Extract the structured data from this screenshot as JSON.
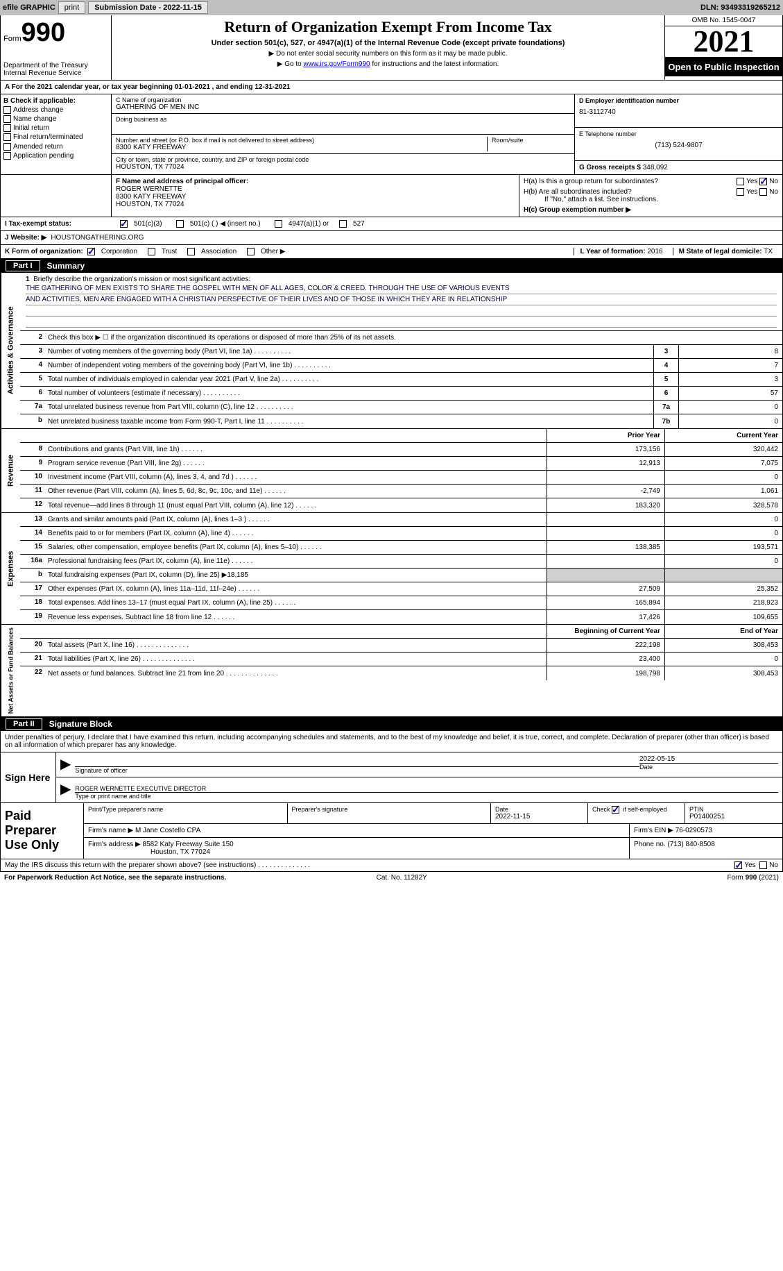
{
  "topbar": {
    "efile_label": "efile GRAPHIC",
    "print_btn": "print",
    "sub_date_label": "Submission Date - 2022-11-15",
    "dln": "DLN: 93493319265212"
  },
  "header": {
    "form_small": "Form",
    "form_big": "990",
    "dept": "Department of the Treasury Internal Revenue Service",
    "title": "Return of Organization Exempt From Income Tax",
    "sub1": "Under section 501(c), 527, or 4947(a)(1) of the Internal Revenue Code (except private foundations)",
    "sub2": "▶ Do not enter social security numbers on this form as it may be made public.",
    "sub3_pre": "▶ Go to ",
    "sub3_link": "www.irs.gov/Form990",
    "sub3_post": " for instructions and the latest information.",
    "omb": "OMB No. 1545-0047",
    "year": "2021",
    "open": "Open to Public Inspection"
  },
  "lineA": "A For the 2021 calendar year, or tax year beginning 01-01-2021    , and ending 12-31-2021",
  "boxB": {
    "label": "B Check if applicable:",
    "addr": "Address change",
    "name": "Name change",
    "init": "Initial return",
    "final": "Final return/terminated",
    "amend": "Amended return",
    "app": "Application pending"
  },
  "boxC": {
    "label": "C Name of organization",
    "org": "GATHERING OF MEN INC",
    "dba_label": "Doing business as",
    "dba": "",
    "street_label": "Number and street (or P.O. box if mail is not delivered to street address)",
    "street": "8300 KATY FREEWAY",
    "room_label": "Room/suite",
    "city_label": "City or town, state or province, country, and ZIP or foreign postal code",
    "city": "HOUSTON, TX  77024"
  },
  "boxD": {
    "label": "D Employer identification number",
    "val": "81-3112740"
  },
  "boxE": {
    "label": "E Telephone number",
    "val": "(713) 524-9807"
  },
  "boxG": {
    "label": "G Gross receipts $",
    "val": "348,092"
  },
  "boxF": {
    "label": "F Name and address of principal officer:",
    "name": "ROGER WERNETTE",
    "addr1": "8300 KATY FREEWAY",
    "addr2": "HOUSTON, TX  77024"
  },
  "boxH": {
    "a_label": "H(a)  Is this a group return for subordinates?",
    "yes": "Yes",
    "no": "No",
    "b_label": "H(b)  Are all subordinates included?",
    "b_note": "If \"No,\" attach a list. See instructions.",
    "c_label": "H(c)  Group exemption number ▶"
  },
  "boxI": {
    "label": "I   Tax-exempt status:",
    "c3": "501(c)(3)",
    "c": "501(c) (   ) ◀ (insert no.)",
    "a1": "4947(a)(1) or",
    "s527": "527"
  },
  "boxJ": {
    "label": "J  Website: ▶",
    "val": "HOUSTONGATHERING.ORG"
  },
  "boxK": {
    "label": "K Form of organization:",
    "corp": "Corporation",
    "trust": "Trust",
    "assoc": "Association",
    "other": "Other ▶"
  },
  "boxL": {
    "label": "L Year of formation:",
    "val": "2016"
  },
  "boxM": {
    "label": "M State of legal domicile:",
    "val": "TX"
  },
  "part1": {
    "tag": "Part I",
    "title": "Summary"
  },
  "mission": {
    "num": "1",
    "label": "Briefly describe the organization's mission or most significant activities:",
    "line1": "THE GATHERING OF MEN EXISTS TO SHARE THE GOSPEL WITH MEN OF ALL AGES, COLOR & CREED. THROUGH THE USE OF VARIOUS EVENTS",
    "line2": "AND ACTIVITIES, MEN ARE ENGAGED WITH A CHRISTIAN PERSPECTIVE OF THEIR LIVES AND OF THOSE IN WHICH THEY ARE IN RELATIONSHIP"
  },
  "gov_lines": [
    {
      "n": "2",
      "d": "Check this box ▶ ☐ if the organization discontinued its operations or disposed of more than 25% of its net assets."
    },
    {
      "n": "3",
      "d": "Number of voting members of the governing body (Part VI, line 1a)",
      "box": "3",
      "v": "8"
    },
    {
      "n": "4",
      "d": "Number of independent voting members of the governing body (Part VI, line 1b)",
      "box": "4",
      "v": "7"
    },
    {
      "n": "5",
      "d": "Total number of individuals employed in calendar year 2021 (Part V, line 2a)",
      "box": "5",
      "v": "3"
    },
    {
      "n": "6",
      "d": "Total number of volunteers (estimate if necessary)",
      "box": "6",
      "v": "57"
    },
    {
      "n": "7a",
      "d": "Total unrelated business revenue from Part VIII, column (C), line 12",
      "box": "7a",
      "v": "0"
    },
    {
      "n": "b",
      "d": "Net unrelated business taxable income from Form 990-T, Part I, line 11",
      "box": "7b",
      "v": "0"
    }
  ],
  "col_headers": {
    "prior": "Prior Year",
    "current": "Current Year"
  },
  "rev_lines": [
    {
      "n": "8",
      "d": "Contributions and grants (Part VIII, line 1h)",
      "p": "173,156",
      "c": "320,442"
    },
    {
      "n": "9",
      "d": "Program service revenue (Part VIII, line 2g)",
      "p": "12,913",
      "c": "7,075"
    },
    {
      "n": "10",
      "d": "Investment income (Part VIII, column (A), lines 3, 4, and 7d )",
      "p": "",
      "c": "0"
    },
    {
      "n": "11",
      "d": "Other revenue (Part VIII, column (A), lines 5, 6d, 8c, 9c, 10c, and 11e)",
      "p": "-2,749",
      "c": "1,061"
    },
    {
      "n": "12",
      "d": "Total revenue—add lines 8 through 11 (must equal Part VIII, column (A), line 12)",
      "p": "183,320",
      "c": "328,578"
    }
  ],
  "exp_lines": [
    {
      "n": "13",
      "d": "Grants and similar amounts paid (Part IX, column (A), lines 1–3 )",
      "p": "",
      "c": "0"
    },
    {
      "n": "14",
      "d": "Benefits paid to or for members (Part IX, column (A), line 4)",
      "p": "",
      "c": "0"
    },
    {
      "n": "15",
      "d": "Salaries, other compensation, employee benefits (Part IX, column (A), lines 5–10)",
      "p": "138,385",
      "c": "193,571"
    },
    {
      "n": "16a",
      "d": "Professional fundraising fees (Part IX, column (A), line 11e)",
      "p": "",
      "c": "0"
    },
    {
      "n": "b",
      "d": "Total fundraising expenses (Part IX, column (D), line 25) ▶18,185",
      "shaded": true
    },
    {
      "n": "17",
      "d": "Other expenses (Part IX, column (A), lines 11a–11d, 11f–24e)",
      "p": "27,509",
      "c": "25,352"
    },
    {
      "n": "18",
      "d": "Total expenses. Add lines 13–17 (must equal Part IX, column (A), line 25)",
      "p": "165,894",
      "c": "218,923"
    },
    {
      "n": "19",
      "d": "Revenue less expenses. Subtract line 18 from line 12",
      "p": "17,426",
      "c": "109,655"
    }
  ],
  "net_headers": {
    "begin": "Beginning of Current Year",
    "end": "End of Year"
  },
  "net_lines": [
    {
      "n": "20",
      "d": "Total assets (Part X, line 16)",
      "p": "222,198",
      "c": "308,453"
    },
    {
      "n": "21",
      "d": "Total liabilities (Part X, line 26)",
      "p": "23,400",
      "c": "0"
    },
    {
      "n": "22",
      "d": "Net assets or fund balances. Subtract line 21 from line 20",
      "p": "198,798",
      "c": "308,453"
    }
  ],
  "part2": {
    "tag": "Part II",
    "title": "Signature Block"
  },
  "penalty": "Under penalties of perjury, I declare that I have examined this return, including accompanying schedules and statements, and to the best of my knowledge and belief, it is true, correct, and complete. Declaration of preparer (other than officer) is based on all information of which preparer has any knowledge.",
  "sign": {
    "here": "Sign Here",
    "sig_label": "Signature of officer",
    "date": "2022-05-15",
    "date_label": "Date",
    "name": "ROGER WERNETTE  EXECUTIVE DIRECTOR",
    "name_label": "Type or print name and title"
  },
  "paid": {
    "label": "Paid Preparer Use Only",
    "print_label": "Print/Type preparer's name",
    "print_val": "",
    "sig_label": "Preparer's signature",
    "date_label": "Date",
    "date_val": "2022-11-15",
    "check_label": "Check ☑ if self-employed",
    "ptin_label": "PTIN",
    "ptin_val": "P01400251",
    "firm_label": "Firm's name    ▶",
    "firm_val": "M Jane Costello CPA",
    "ein_label": "Firm's EIN ▶",
    "ein_val": "76-0290573",
    "addr_label": "Firm's address ▶",
    "addr_val": "8582 Katy Freeway Suite 150",
    "addr_val2": "Houston, TX  77024",
    "phone_label": "Phone no.",
    "phone_val": "(713) 840-8508"
  },
  "discuss": {
    "q": "May the IRS discuss this return with the preparer shown above? (see instructions)",
    "yes": "Yes",
    "no": "No"
  },
  "footer": {
    "pra": "For Paperwork Reduction Act Notice, see the separate instructions.",
    "cat": "Cat. No. 11282Y",
    "form": "Form 990 (2021)"
  },
  "side_labels": {
    "gov": "Activities & Governance",
    "rev": "Revenue",
    "exp": "Expenses",
    "net": "Net Assets or Fund Balances"
  }
}
